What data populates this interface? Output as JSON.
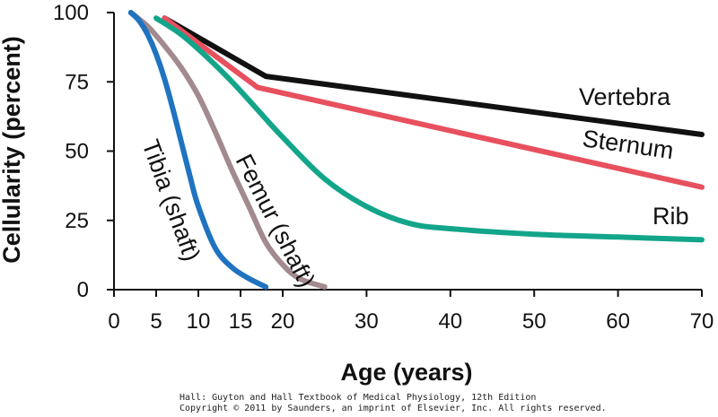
{
  "chart_data": {
    "type": "line",
    "title": "",
    "xlabel": "Age (years)",
    "ylabel": "Cellularity (percent)",
    "x_ticks": [
      0,
      5,
      10,
      15,
      20,
      30,
      40,
      50,
      60,
      70
    ],
    "y_ticks": [
      0,
      25,
      50,
      75,
      100
    ],
    "ylim": [
      0,
      100
    ],
    "series": [
      {
        "name": "Vertebra",
        "color": "#111111",
        "x": [
          6,
          18,
          70
        ],
        "y": [
          98,
          77,
          56
        ]
      },
      {
        "name": "Sternum",
        "color": "#e8505e",
        "x": [
          6,
          17,
          70
        ],
        "y": [
          98,
          73,
          37
        ]
      },
      {
        "name": "Rib",
        "color": "#13a58a",
        "x": [
          5,
          8,
          11,
          14,
          17,
          20,
          25,
          30,
          35,
          40,
          50,
          60,
          70
        ],
        "y": [
          98,
          92,
          84,
          75,
          65,
          55,
          40,
          30,
          24,
          22,
          20,
          19,
          18
        ]
      },
      {
        "name": "Femur (shaft)",
        "color": "#a28a8e",
        "x": [
          2,
          4,
          6,
          8,
          10,
          12,
          14,
          16,
          18,
          20,
          22,
          25
        ],
        "y": [
          100,
          95,
          88,
          80,
          70,
          57,
          43,
          30,
          17,
          9,
          4,
          1
        ]
      },
      {
        "name": "Tibia (shaft)",
        "color": "#1f73c0",
        "x": [
          2,
          3,
          4,
          5,
          6,
          7,
          8,
          9,
          10,
          12,
          14,
          16,
          18
        ],
        "y": [
          100,
          97,
          92,
          85,
          76,
          65,
          53,
          41,
          30,
          15,
          8,
          4,
          1
        ]
      }
    ]
  },
  "credit": {
    "line1": "Hall: Guyton and Hall Textbook of Medical Physiology, 12th Edition",
    "line2": "Copyright © 2011 by Saunders, an imprint of Elsevier, Inc. All rights reserved."
  }
}
